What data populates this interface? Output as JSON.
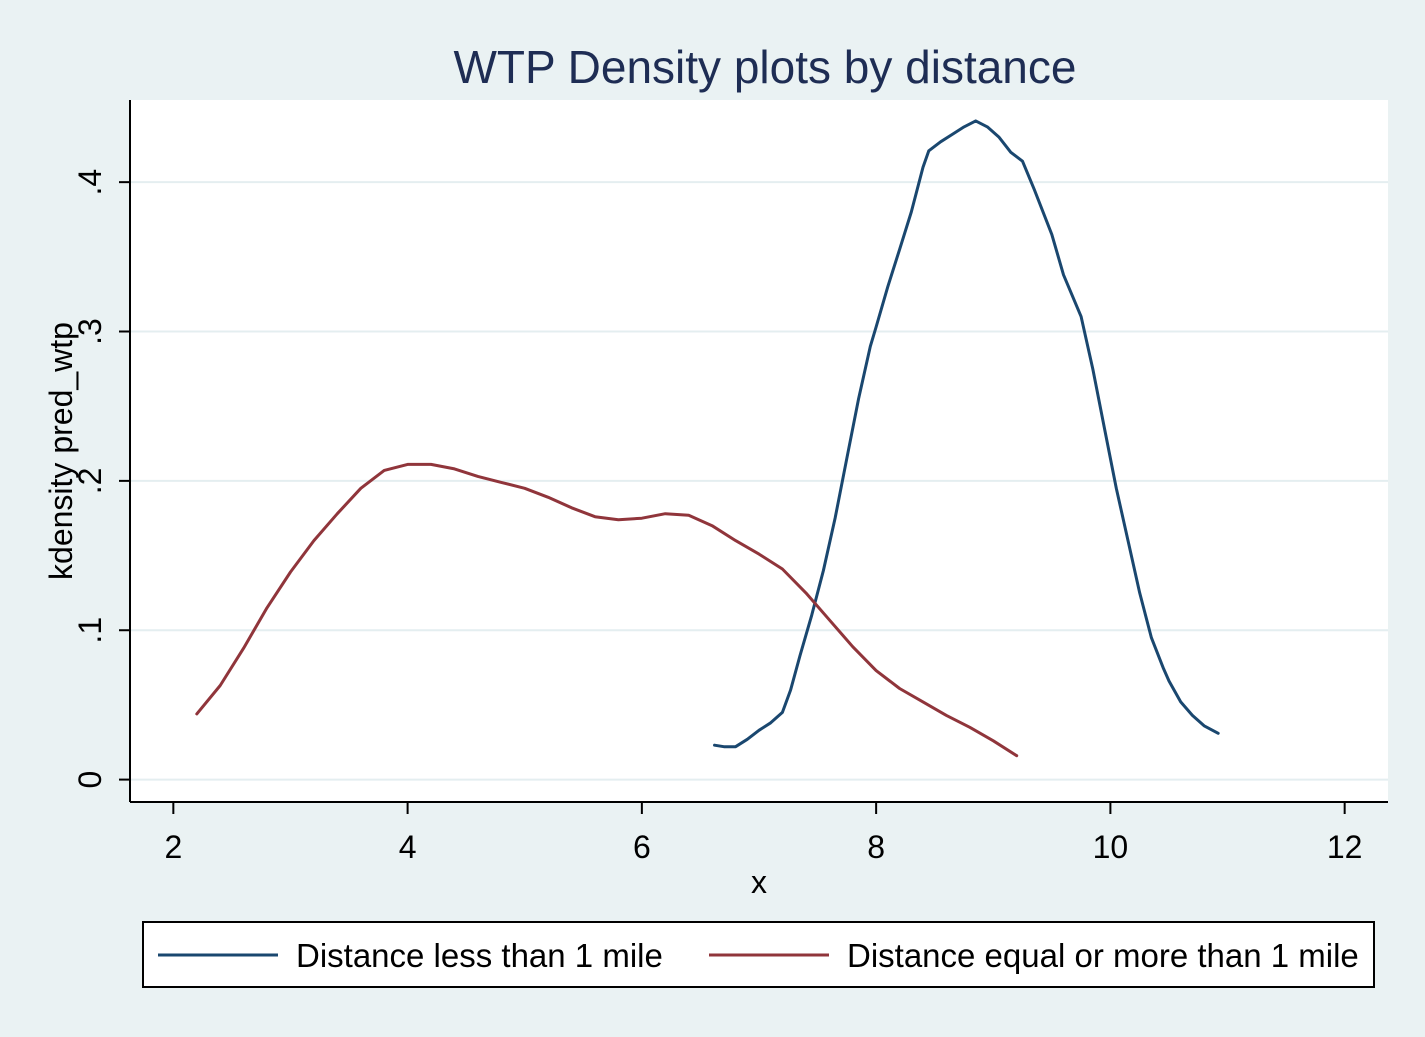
{
  "chart_data": {
    "type": "line",
    "title": "WTP Density plots by distance",
    "xlabel": "x",
    "ylabel": "kdensity pred_wtp",
    "xlim": [
      1.63,
      12.37
    ],
    "ylim": [
      -0.015,
      0.455
    ],
    "x_ticks": [
      2,
      4,
      6,
      8,
      10,
      12
    ],
    "x_tick_labels": [
      "2",
      "4",
      "6",
      "8",
      "10",
      "12"
    ],
    "y_ticks": [
      0,
      0.1,
      0.2,
      0.3,
      0.4
    ],
    "y_tick_labels": [
      "0",
      ".1",
      ".2",
      ".3",
      ".4"
    ],
    "grid": "horizontal",
    "legend_position": "bottom",
    "colors": {
      "background": "#eaf2f3",
      "plot": "#ffffff",
      "grid": "#e4eef0"
    },
    "series": [
      {
        "name": "Distance less than 1 mile",
        "color": "#1a476f",
        "x": [
          6.62,
          6.7,
          6.8,
          6.9,
          7.0,
          7.1,
          7.2,
          7.27,
          7.35,
          7.45,
          7.55,
          7.65,
          7.75,
          7.85,
          7.95,
          8.0,
          8.1,
          8.2,
          8.3,
          8.4,
          8.45,
          8.55,
          8.65,
          8.75,
          8.85,
          8.95,
          9.05,
          9.15,
          9.25,
          9.35,
          9.5,
          9.6,
          9.75,
          9.85,
          9.95,
          10.05,
          10.15,
          10.25,
          10.35,
          10.45,
          10.5,
          10.6,
          10.7,
          10.8,
          10.92
        ],
        "y": [
          0.023,
          0.022,
          0.022,
          0.027,
          0.033,
          0.038,
          0.045,
          0.06,
          0.083,
          0.11,
          0.14,
          0.175,
          0.215,
          0.255,
          0.29,
          0.303,
          0.33,
          0.355,
          0.38,
          0.41,
          0.421,
          0.427,
          0.432,
          0.437,
          0.441,
          0.437,
          0.43,
          0.42,
          0.414,
          0.395,
          0.365,
          0.338,
          0.31,
          0.275,
          0.235,
          0.195,
          0.16,
          0.125,
          0.095,
          0.075,
          0.066,
          0.052,
          0.043,
          0.036,
          0.031
        ]
      },
      {
        "name": "Distance equal or more than 1 mile",
        "color": "#90353b",
        "x": [
          2.2,
          2.4,
          2.6,
          2.8,
          3.0,
          3.2,
          3.4,
          3.6,
          3.8,
          4.0,
          4.2,
          4.4,
          4.6,
          4.8,
          5.0,
          5.2,
          5.4,
          5.6,
          5.8,
          6.0,
          6.2,
          6.4,
          6.6,
          6.8,
          7.0,
          7.2,
          7.4,
          7.6,
          7.8,
          8.0,
          8.2,
          8.4,
          8.6,
          8.8,
          9.0,
          9.2
        ],
        "y": [
          0.044,
          0.063,
          0.088,
          0.115,
          0.139,
          0.16,
          0.178,
          0.195,
          0.207,
          0.211,
          0.211,
          0.208,
          0.203,
          0.199,
          0.195,
          0.189,
          0.182,
          0.176,
          0.174,
          0.175,
          0.178,
          0.177,
          0.17,
          0.16,
          0.151,
          0.141,
          0.125,
          0.107,
          0.089,
          0.073,
          0.061,
          0.052,
          0.043,
          0.035,
          0.026,
          0.016
        ]
      }
    ]
  }
}
